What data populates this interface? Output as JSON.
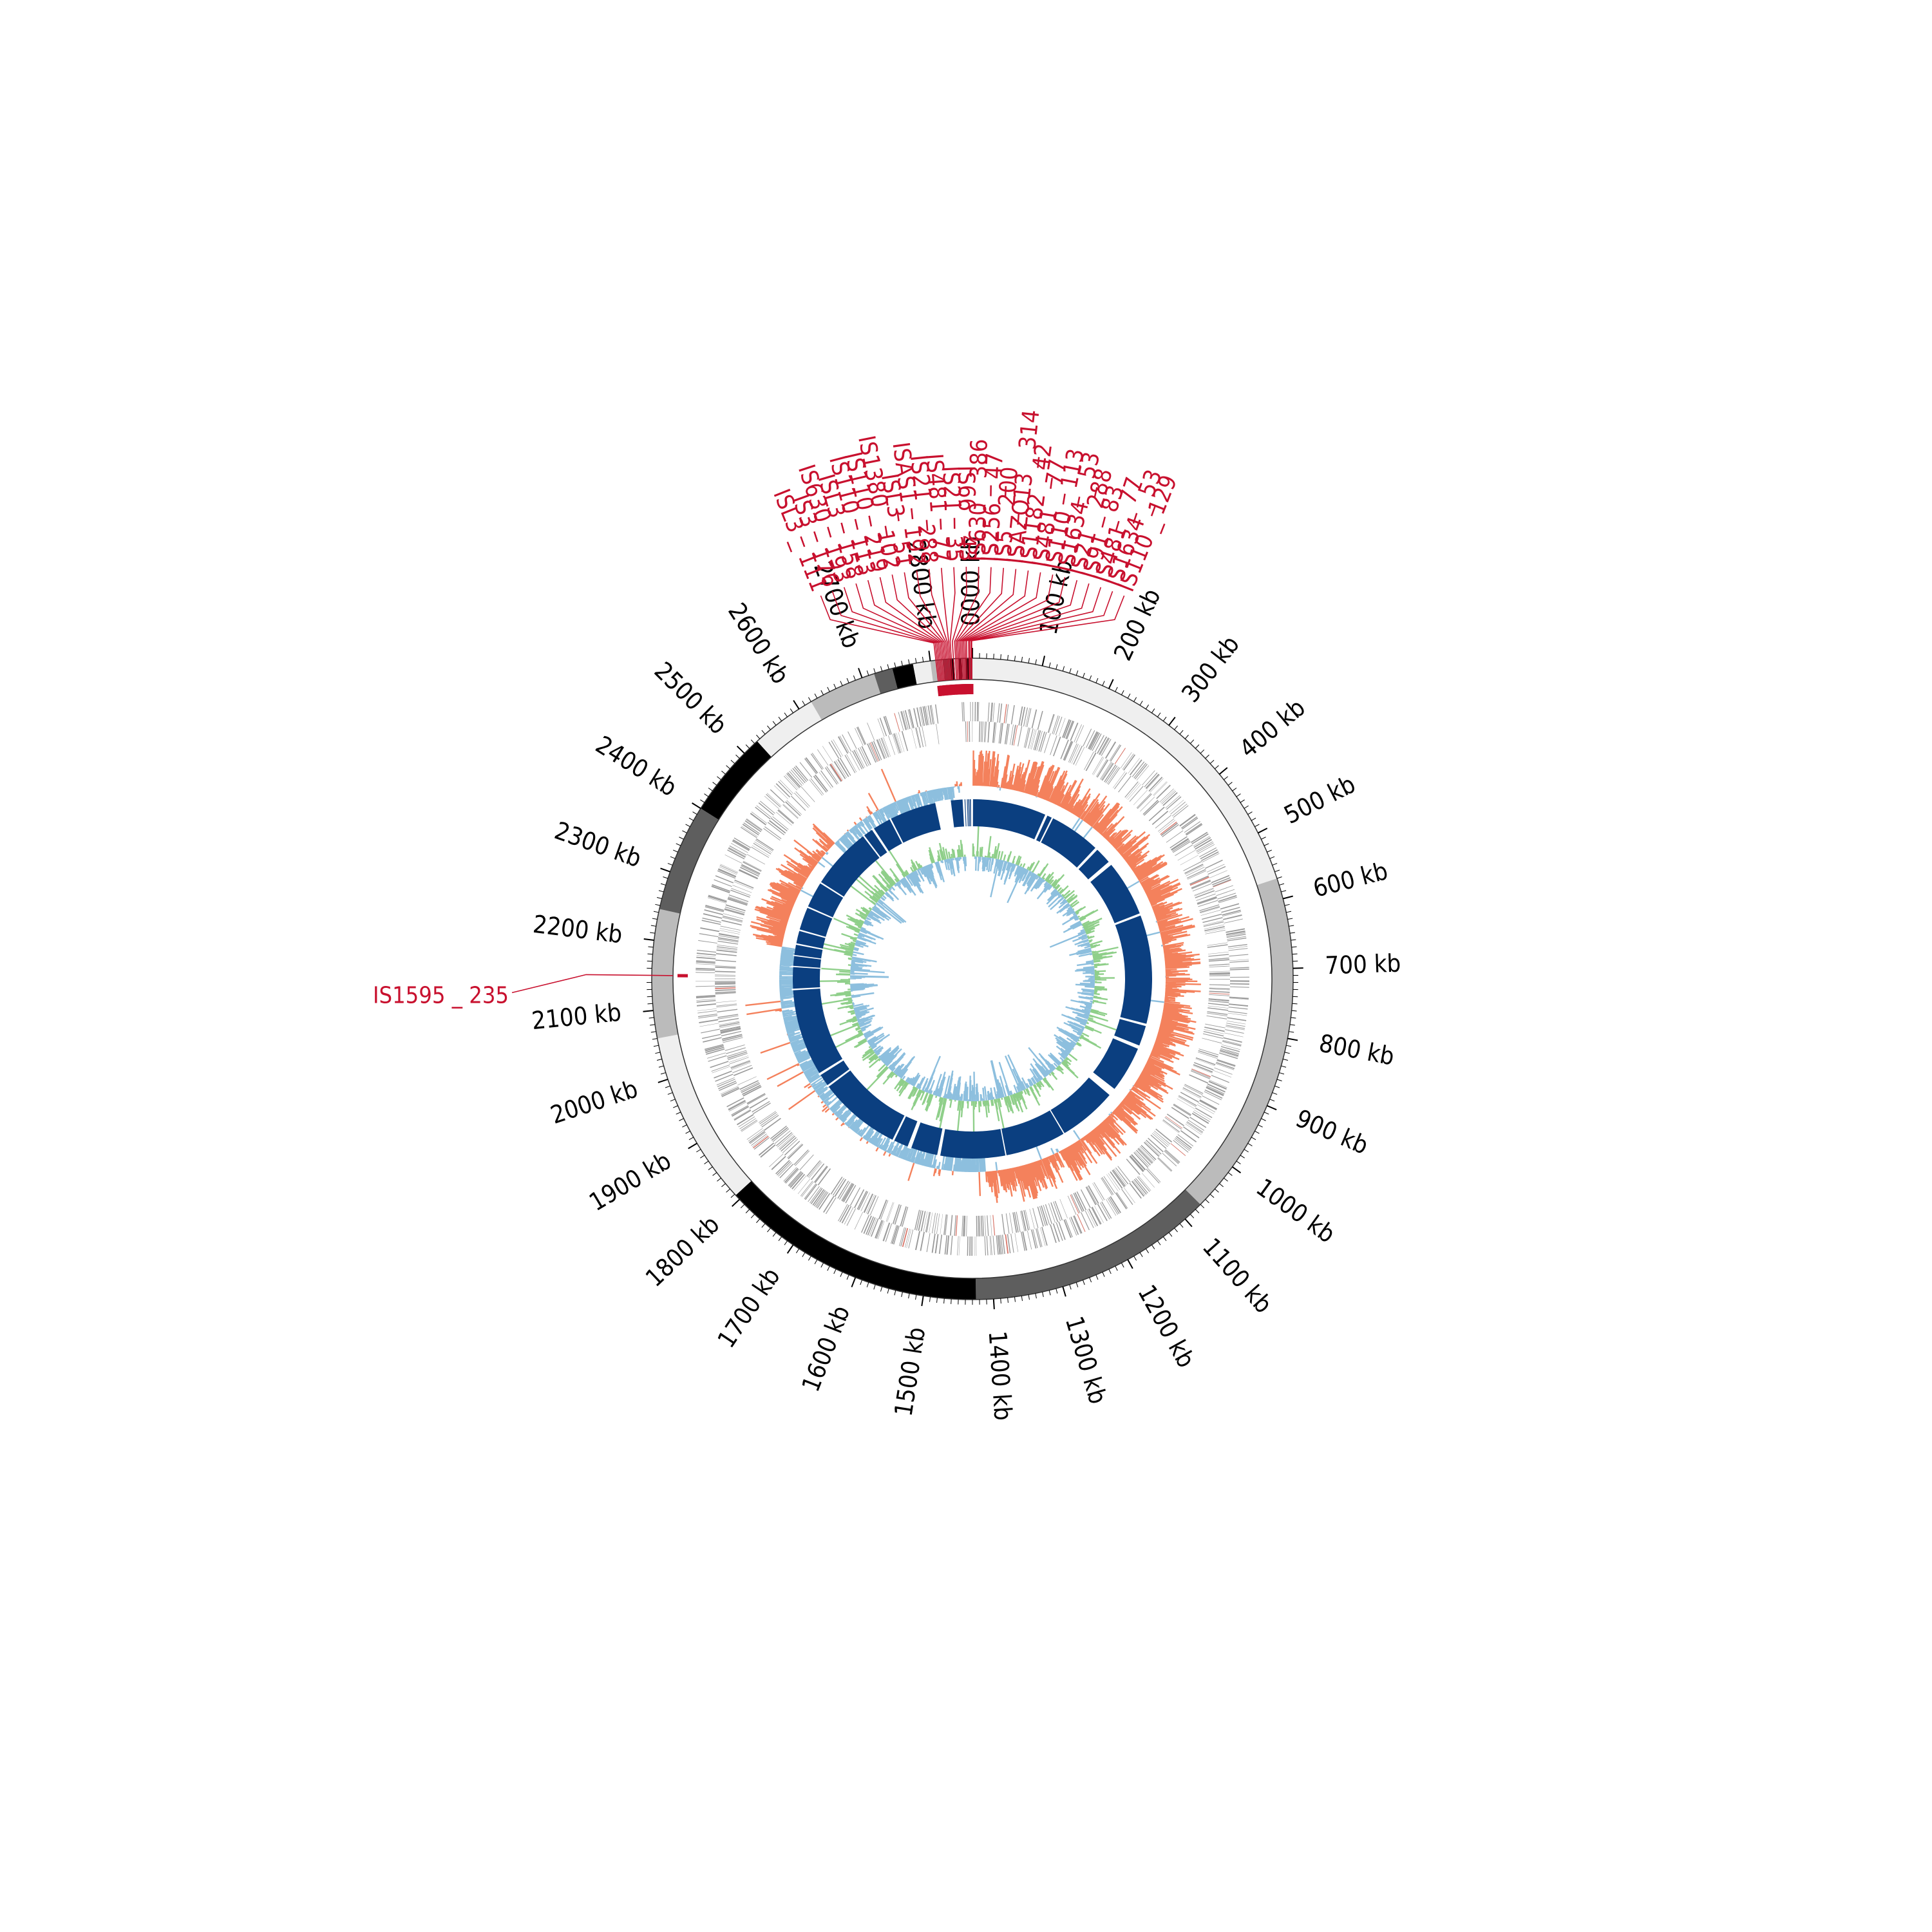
{
  "genome": {
    "length_kb": 2860,
    "ticks_kb": [
      100,
      200,
      300,
      400,
      500,
      600,
      700,
      800,
      900,
      1000,
      1100,
      1200,
      1300,
      1400,
      1500,
      1600,
      1700,
      1800,
      1900,
      2000,
      2100,
      2200,
      2300,
      2400,
      2500,
      2600,
      2700,
      2800
    ],
    "origin_label": "0000 kb",
    "unit": "kb"
  },
  "colors": {
    "is_red": "#c8102e",
    "gene_gray": "#999999",
    "gc_skew_pos": "#f4815c",
    "gc_skew_neg": "#8dbfde",
    "gc_content_pos": "#8fcf8a",
    "gc_content_neg": "#8dbfde",
    "blast_ring": "#0b3f80",
    "ring_outline": "#333333"
  },
  "contig_ring": {
    "segments_kb": [
      {
        "start": 0,
        "end": 570,
        "shade": "#efefef"
      },
      {
        "start": 570,
        "end": 1070,
        "shade": "#bbbbbb"
      },
      {
        "start": 1070,
        "end": 1425,
        "shade": "#5e5e5e"
      },
      {
        "start": 1425,
        "end": 1808,
        "shade": "#000000"
      },
      {
        "start": 1808,
        "end": 2060,
        "shade": "#efefef"
      },
      {
        "start": 2060,
        "end": 2245,
        "shade": "#bbbbbb"
      },
      {
        "start": 2245,
        "end": 2400,
        "shade": "#5e5e5e"
      },
      {
        "start": 2400,
        "end": 2525,
        "shade": "#000000"
      },
      {
        "start": 2525,
        "end": 2620,
        "shade": "#efefef"
      },
      {
        "start": 2620,
        "end": 2718,
        "shade": "#bbbbbb"
      },
      {
        "start": 2718,
        "end": 2745,
        "shade": "#5e5e5e"
      },
      {
        "start": 2745,
        "end": 2775,
        "shade": "#000000"
      },
      {
        "start": 2775,
        "end": 2800,
        "shade": "#efefef"
      },
      {
        "start": 2800,
        "end": 2818,
        "shade": "#bbbbbb"
      },
      {
        "start": 2818,
        "end": 2828,
        "shade": "#5e5e5e"
      },
      {
        "start": 2828,
        "end": 2834,
        "shade": "#000000"
      },
      {
        "start": 2834,
        "end": 2840,
        "shade": "#efefef"
      },
      {
        "start": 2840,
        "end": 2845,
        "shade": "#000000"
      },
      {
        "start": 2845,
        "end": 2850,
        "shade": "#bbbbbb"
      },
      {
        "start": 2850,
        "end": 2855,
        "shade": "#000000"
      },
      {
        "start": 2855,
        "end": 2860,
        "shade": "#5e5e5e"
      }
    ]
  },
  "blast_gaps_kb": [
    [
      2842,
      2846
    ],
    [
      2848,
      2849
    ],
    [
      2852,
      2853
    ],
    [
      2856,
      2860
    ],
    [
      0,
      0.01
    ],
    [
      190,
      196
    ],
    [
      208,
      212
    ],
    [
      343,
      350
    ],
    [
      392,
      402
    ],
    [
      545,
      551
    ],
    [
      830,
      836
    ],
    [
      888,
      897
    ],
    [
      1015,
      1035
    ],
    [
      1185,
      1188
    ],
    [
      1343,
      1346
    ],
    [
      1512,
      1520
    ],
    [
      1588,
      1598
    ],
    [
      1635,
      1640
    ],
    [
      1852,
      1857
    ],
    [
      1888,
      1894
    ],
    [
      2116,
      2120
    ],
    [
      2175,
      2178
    ],
    [
      2203,
      2206
    ],
    [
      2232,
      2236
    ],
    [
      2268,
      2272
    ],
    [
      2330,
      2334
    ],
    [
      2400,
      2404
    ],
    [
      2562,
      2566
    ],
    [
      2590,
      2596
    ],
    [
      2642,
      2646
    ],
    [
      2765,
      2805
    ],
    [
      2835,
      2840
    ]
  ],
  "is_elements": [
    {
      "name": "IS110 _ 129",
      "kb": 2859
    },
    {
      "name": "IS1634 _ 53",
      "kb": 2858
    },
    {
      "name": "IS481 _ 77",
      "kb": 2856
    },
    {
      "name": "IS91 _ 83",
      "kb": 2855
    },
    {
      "name": "IS21 _ 288",
      "kb": 2852
    },
    {
      "name": "IS1634 _ 53",
      "kb": 2850
    },
    {
      "name": "IS110 _ 113",
      "kb": 2848
    },
    {
      "name": "IS481 _ 77",
      "kb": 2846
    },
    {
      "name": "IS1182 _ 42",
      "kb": 2844
    },
    {
      "name": "ISAZO13 _ 314",
      "kb": 2842
    },
    {
      "name": "IS5 _ 200",
      "kb": 2840
    },
    {
      "name": "IS256 _ 47",
      "kb": 2838
    },
    {
      "name": "IS630 _ 386",
      "kb": 2836
    },
    {
      "name": "IS66 _ 43",
      "kb": 2833
    },
    {
      "name": "IS21 _ 35",
      "kb": 2830
    },
    {
      "name": "IS481 _ 77",
      "kb": 2828
    },
    {
      "name": "IS21 _ 288",
      "kb": 2826
    },
    {
      "name": "ISAS1 _ 192",
      "kb": 2824
    },
    {
      "name": "ISL3 _ 51",
      "kb": 2822
    },
    {
      "name": "IS1380 _ 102",
      "kb": 2820
    },
    {
      "name": "IS110 _ 219",
      "kb": 2818
    },
    {
      "name": "IS110 _ 113",
      "kb": 2816
    },
    {
      "name": "ISL3 _ 158",
      "kb": 2814
    },
    {
      "name": "IS630 _ 193",
      "kb": 2812
    },
    {
      "name": "IS3 _ 176",
      "kb": 2810
    },
    {
      "name": "ISL3 _ 111",
      "kb": 2808
    },
    {
      "name": "IS1595 _ 235",
      "kb": 2150
    }
  ]
}
